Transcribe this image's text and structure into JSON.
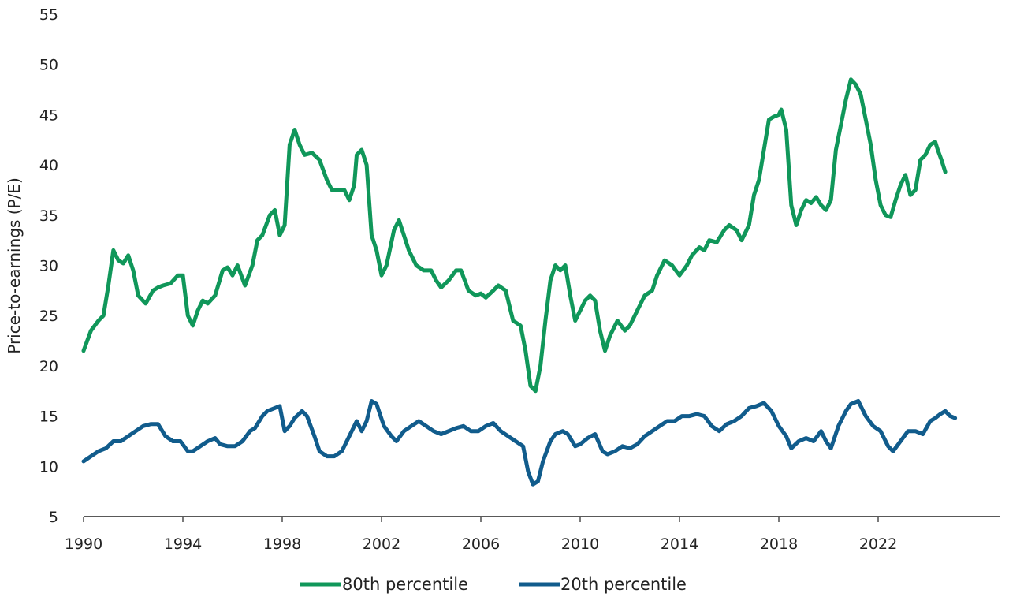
{
  "chart_data": {
    "type": "line",
    "title": "",
    "xlabel": "",
    "ylabel": "Price-to-earnings (P/E)",
    "xlim": [
      1990,
      2024.5
    ],
    "ylim": [
      5,
      55
    ],
    "y_ticks": [
      5,
      10,
      15,
      20,
      25,
      30,
      35,
      40,
      45,
      50,
      55
    ],
    "x_ticks": [
      1990,
      1994,
      1998,
      2002,
      2006,
      2010,
      2014,
      2018,
      2022
    ],
    "grid": false,
    "legend_position": "bottom",
    "series": [
      {
        "name": "80th percentile",
        "color": "#10975a",
        "points": [
          [
            1990.0,
            21.5
          ],
          [
            1990.3,
            23.5
          ],
          [
            1990.6,
            24.5
          ],
          [
            1990.8,
            25.0
          ],
          [
            1991.0,
            28.0
          ],
          [
            1991.2,
            31.5
          ],
          [
            1991.4,
            30.5
          ],
          [
            1991.6,
            30.2
          ],
          [
            1991.8,
            31.0
          ],
          [
            1992.0,
            29.5
          ],
          [
            1992.2,
            27.0
          ],
          [
            1992.5,
            26.2
          ],
          [
            1992.8,
            27.5
          ],
          [
            1993.0,
            27.8
          ],
          [
            1993.2,
            28.0
          ],
          [
            1993.5,
            28.2
          ],
          [
            1993.8,
            29.0
          ],
          [
            1994.0,
            29.0
          ],
          [
            1994.2,
            25.0
          ],
          [
            1994.4,
            24.0
          ],
          [
            1994.6,
            25.5
          ],
          [
            1994.8,
            26.5
          ],
          [
            1995.0,
            26.2
          ],
          [
            1995.3,
            27.0
          ],
          [
            1995.6,
            29.5
          ],
          [
            1995.8,
            29.8
          ],
          [
            1996.0,
            29.0
          ],
          [
            1996.2,
            30.0
          ],
          [
            1996.5,
            28.0
          ],
          [
            1996.8,
            30.0
          ],
          [
            1997.0,
            32.5
          ],
          [
            1997.2,
            33.0
          ],
          [
            1997.5,
            35.0
          ],
          [
            1997.7,
            35.5
          ],
          [
            1997.9,
            33.0
          ],
          [
            1998.1,
            34.0
          ],
          [
            1998.3,
            42.0
          ],
          [
            1998.5,
            43.5
          ],
          [
            1998.7,
            42.0
          ],
          [
            1998.9,
            41.0
          ],
          [
            1999.2,
            41.2
          ],
          [
            1999.5,
            40.5
          ],
          [
            1999.8,
            38.5
          ],
          [
            2000.0,
            37.5
          ],
          [
            2000.2,
            37.5
          ],
          [
            2000.5,
            37.5
          ],
          [
            2000.7,
            36.5
          ],
          [
            2000.9,
            38.0
          ],
          [
            2001.0,
            41.0
          ],
          [
            2001.2,
            41.5
          ],
          [
            2001.4,
            40.0
          ],
          [
            2001.6,
            33.0
          ],
          [
            2001.8,
            31.5
          ],
          [
            2002.0,
            29.0
          ],
          [
            2002.2,
            30.0
          ],
          [
            2002.5,
            33.5
          ],
          [
            2002.7,
            34.5
          ],
          [
            2002.9,
            33.0
          ],
          [
            2003.1,
            31.5
          ],
          [
            2003.4,
            30.0
          ],
          [
            2003.7,
            29.5
          ],
          [
            2004.0,
            29.5
          ],
          [
            2004.2,
            28.5
          ],
          [
            2004.4,
            27.8
          ],
          [
            2004.7,
            28.5
          ],
          [
            2005.0,
            29.5
          ],
          [
            2005.2,
            29.5
          ],
          [
            2005.5,
            27.5
          ],
          [
            2005.8,
            27.0
          ],
          [
            2006.0,
            27.2
          ],
          [
            2006.2,
            26.8
          ],
          [
            2006.5,
            27.5
          ],
          [
            2006.7,
            28.0
          ],
          [
            2007.0,
            27.5
          ],
          [
            2007.3,
            24.5
          ],
          [
            2007.6,
            24.0
          ],
          [
            2007.8,
            21.5
          ],
          [
            2008.0,
            18.0
          ],
          [
            2008.2,
            17.5
          ],
          [
            2008.4,
            20.0
          ],
          [
            2008.6,
            24.5
          ],
          [
            2008.8,
            28.5
          ],
          [
            2009.0,
            30.0
          ],
          [
            2009.2,
            29.5
          ],
          [
            2009.4,
            30.0
          ],
          [
            2009.6,
            27.0
          ],
          [
            2009.8,
            24.5
          ],
          [
            2010.0,
            25.5
          ],
          [
            2010.2,
            26.5
          ],
          [
            2010.4,
            27.0
          ],
          [
            2010.6,
            26.5
          ],
          [
            2010.8,
            23.5
          ],
          [
            2011.0,
            21.5
          ],
          [
            2011.2,
            23.0
          ],
          [
            2011.5,
            24.5
          ],
          [
            2011.8,
            23.5
          ],
          [
            2012.0,
            24.0
          ],
          [
            2012.3,
            25.5
          ],
          [
            2012.6,
            27.0
          ],
          [
            2012.9,
            27.5
          ],
          [
            2013.1,
            29.0
          ],
          [
            2013.4,
            30.5
          ],
          [
            2013.7,
            30.0
          ],
          [
            2014.0,
            29.0
          ],
          [
            2014.3,
            30.0
          ],
          [
            2014.5,
            31.0
          ],
          [
            2014.8,
            31.8
          ],
          [
            2015.0,
            31.5
          ],
          [
            2015.2,
            32.5
          ],
          [
            2015.5,
            32.3
          ],
          [
            2015.8,
            33.5
          ],
          [
            2016.0,
            34.0
          ],
          [
            2016.3,
            33.5
          ],
          [
            2016.5,
            32.5
          ],
          [
            2016.8,
            34.0
          ],
          [
            2017.0,
            37.0
          ],
          [
            2017.2,
            38.5
          ],
          [
            2017.4,
            41.5
          ],
          [
            2017.6,
            44.5
          ],
          [
            2017.8,
            44.8
          ],
          [
            2018.0,
            45.0
          ],
          [
            2018.1,
            45.5
          ],
          [
            2018.3,
            43.5
          ],
          [
            2018.5,
            36.0
          ],
          [
            2018.7,
            34.0
          ],
          [
            2018.9,
            35.5
          ],
          [
            2019.1,
            36.5
          ],
          [
            2019.3,
            36.2
          ],
          [
            2019.5,
            36.8
          ],
          [
            2019.7,
            36.0
          ],
          [
            2019.9,
            35.5
          ],
          [
            2020.1,
            36.5
          ],
          [
            2020.3,
            41.5
          ],
          [
            2020.5,
            44.0
          ],
          [
            2020.7,
            46.5
          ],
          [
            2020.9,
            48.5
          ],
          [
            2021.1,
            48.0
          ],
          [
            2021.3,
            47.0
          ],
          [
            2021.5,
            44.5
          ],
          [
            2021.7,
            42.0
          ],
          [
            2021.9,
            38.5
          ],
          [
            2022.1,
            36.0
          ],
          [
            2022.3,
            35.0
          ],
          [
            2022.5,
            34.8
          ],
          [
            2022.7,
            36.5
          ],
          [
            2022.9,
            38.0
          ],
          [
            2023.1,
            39.0
          ],
          [
            2023.3,
            37.0
          ],
          [
            2023.5,
            37.5
          ],
          [
            2023.7,
            40.5
          ],
          [
            2023.9,
            41.0
          ],
          [
            2024.1,
            42.0
          ],
          [
            2024.3,
            42.3
          ],
          [
            2024.4,
            41.5
          ],
          [
            2024.55,
            40.5
          ],
          [
            2024.7,
            39.3
          ]
        ]
      },
      {
        "name": "20th percentile",
        "color": "#115c8c",
        "points": [
          [
            1990.0,
            10.5
          ],
          [
            1990.3,
            11.0
          ],
          [
            1990.6,
            11.5
          ],
          [
            1990.9,
            11.8
          ],
          [
            1991.2,
            12.5
          ],
          [
            1991.5,
            12.5
          ],
          [
            1991.8,
            13.0
          ],
          [
            1992.1,
            13.5
          ],
          [
            1992.4,
            14.0
          ],
          [
            1992.7,
            14.2
          ],
          [
            1993.0,
            14.2
          ],
          [
            1993.3,
            13.0
          ],
          [
            1993.6,
            12.5
          ],
          [
            1993.9,
            12.5
          ],
          [
            1994.2,
            11.5
          ],
          [
            1994.4,
            11.5
          ],
          [
            1994.7,
            12.0
          ],
          [
            1995.0,
            12.5
          ],
          [
            1995.3,
            12.8
          ],
          [
            1995.5,
            12.2
          ],
          [
            1995.8,
            12.0
          ],
          [
            1996.1,
            12.0
          ],
          [
            1996.4,
            12.5
          ],
          [
            1996.7,
            13.5
          ],
          [
            1996.9,
            13.8
          ],
          [
            1997.2,
            15.0
          ],
          [
            1997.4,
            15.5
          ],
          [
            1997.7,
            15.8
          ],
          [
            1997.9,
            16.0
          ],
          [
            1998.1,
            13.5
          ],
          [
            1998.3,
            14.0
          ],
          [
            1998.5,
            14.8
          ],
          [
            1998.8,
            15.5
          ],
          [
            1999.0,
            15.0
          ],
          [
            1999.3,
            13.0
          ],
          [
            1999.5,
            11.5
          ],
          [
            1999.8,
            11.0
          ],
          [
            2000.1,
            11.0
          ],
          [
            2000.4,
            11.5
          ],
          [
            2000.7,
            13.0
          ],
          [
            2001.0,
            14.5
          ],
          [
            2001.2,
            13.5
          ],
          [
            2001.4,
            14.5
          ],
          [
            2001.6,
            16.5
          ],
          [
            2001.8,
            16.2
          ],
          [
            2002.1,
            14.0
          ],
          [
            2002.4,
            13.0
          ],
          [
            2002.6,
            12.5
          ],
          [
            2002.9,
            13.5
          ],
          [
            2003.2,
            14.0
          ],
          [
            2003.5,
            14.5
          ],
          [
            2003.8,
            14.0
          ],
          [
            2004.1,
            13.5
          ],
          [
            2004.4,
            13.2
          ],
          [
            2004.7,
            13.5
          ],
          [
            2005.0,
            13.8
          ],
          [
            2005.3,
            14.0
          ],
          [
            2005.6,
            13.5
          ],
          [
            2005.9,
            13.5
          ],
          [
            2006.2,
            14.0
          ],
          [
            2006.5,
            14.3
          ],
          [
            2006.8,
            13.5
          ],
          [
            2007.1,
            13.0
          ],
          [
            2007.4,
            12.5
          ],
          [
            2007.7,
            12.0
          ],
          [
            2007.9,
            9.5
          ],
          [
            2008.1,
            8.2
          ],
          [
            2008.3,
            8.5
          ],
          [
            2008.5,
            10.5
          ],
          [
            2008.8,
            12.5
          ],
          [
            2009.0,
            13.2
          ],
          [
            2009.3,
            13.5
          ],
          [
            2009.5,
            13.2
          ],
          [
            2009.8,
            12.0
          ],
          [
            2010.0,
            12.2
          ],
          [
            2010.3,
            12.8
          ],
          [
            2010.6,
            13.2
          ],
          [
            2010.9,
            11.5
          ],
          [
            2011.1,
            11.2
          ],
          [
            2011.4,
            11.5
          ],
          [
            2011.7,
            12.0
          ],
          [
            2012.0,
            11.8
          ],
          [
            2012.3,
            12.2
          ],
          [
            2012.6,
            13.0
          ],
          [
            2012.9,
            13.5
          ],
          [
            2013.2,
            14.0
          ],
          [
            2013.5,
            14.5
          ],
          [
            2013.8,
            14.5
          ],
          [
            2014.1,
            15.0
          ],
          [
            2014.4,
            15.0
          ],
          [
            2014.7,
            15.2
          ],
          [
            2015.0,
            15.0
          ],
          [
            2015.3,
            14.0
          ],
          [
            2015.6,
            13.5
          ],
          [
            2015.9,
            14.2
          ],
          [
            2016.2,
            14.5
          ],
          [
            2016.5,
            15.0
          ],
          [
            2016.8,
            15.8
          ],
          [
            2017.1,
            16.0
          ],
          [
            2017.4,
            16.3
          ],
          [
            2017.7,
            15.5
          ],
          [
            2018.0,
            14.0
          ],
          [
            2018.3,
            13.0
          ],
          [
            2018.5,
            11.8
          ],
          [
            2018.8,
            12.5
          ],
          [
            2019.1,
            12.8
          ],
          [
            2019.4,
            12.5
          ],
          [
            2019.7,
            13.5
          ],
          [
            2019.9,
            12.5
          ],
          [
            2020.1,
            11.8
          ],
          [
            2020.4,
            14.0
          ],
          [
            2020.7,
            15.5
          ],
          [
            2020.9,
            16.2
          ],
          [
            2021.2,
            16.5
          ],
          [
            2021.5,
            15.0
          ],
          [
            2021.8,
            14.0
          ],
          [
            2022.1,
            13.5
          ],
          [
            2022.4,
            12.0
          ],
          [
            2022.6,
            11.5
          ],
          [
            2022.9,
            12.5
          ],
          [
            2023.2,
            13.5
          ],
          [
            2023.5,
            13.5
          ],
          [
            2023.8,
            13.2
          ],
          [
            2024.1,
            14.5
          ],
          [
            2024.3,
            14.8
          ],
          [
            2024.5,
            15.2
          ],
          [
            2024.7,
            15.5
          ],
          [
            2024.9,
            15.0
          ],
          [
            2025.1,
            14.8
          ]
        ]
      }
    ]
  }
}
